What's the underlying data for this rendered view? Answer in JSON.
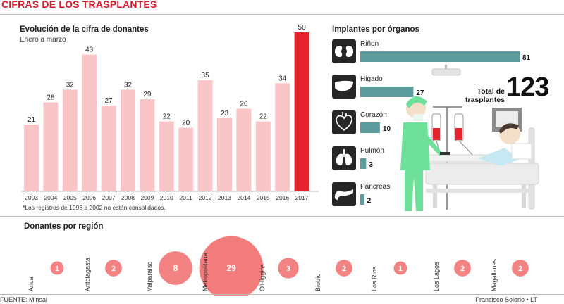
{
  "header": {
    "title": "CIFRAS DE LOS TRASPLANTES"
  },
  "colors": {
    "bar": "#f9c5c6",
    "highlight": "#e8222d",
    "organ_bar": "#5c9c9c",
    "bubble": "#f38383",
    "bubble_big": "#f27b7b",
    "icon_box": "#262626",
    "nurse": "#6fe09a"
  },
  "chart_data": [
    {
      "type": "bar",
      "title": "Evolución de la cifra de donantes",
      "subtitle": "Enero a marzo",
      "categories": [
        "2003",
        "2004",
        "2005",
        "2006",
        "2007",
        "2008",
        "2009",
        "2010",
        "2011",
        "2012",
        "2013",
        "2014",
        "2015",
        "2016",
        "2017"
      ],
      "values": [
        21,
        28,
        32,
        43,
        27,
        32,
        29,
        22,
        20,
        35,
        23,
        26,
        22,
        34,
        50
      ],
      "highlight_category": "2017",
      "ylim": [
        0,
        50
      ],
      "grid": false,
      "note": "*Los registros de 1998 a 2002 no están consolidados."
    },
    {
      "type": "bar",
      "orientation": "horizontal",
      "title": "Implantes por órganos",
      "categories": [
        "Riñon",
        "Higado",
        "Corazón",
        "Pulmón",
        "Páncreas"
      ],
      "icons": [
        "kidney-icon",
        "liver-icon",
        "heart-icon",
        "lungs-icon",
        "pancreas-icon"
      ],
      "values": [
        81,
        27,
        10,
        3,
        2
      ],
      "total_label": "Total de trasplantes",
      "total_value": "123"
    },
    {
      "type": "scatter",
      "encoding": "bubble size",
      "title": "Donantes por región",
      "categories": [
        "Arica",
        "Antofagasta",
        "Valparaíso",
        "Metropolitana",
        "O'Higgins",
        "Biobío",
        "Los Ríos",
        "Los Lagos",
        "Magallanes"
      ],
      "values": [
        1,
        2,
        8,
        29,
        3,
        2,
        1,
        2,
        2
      ]
    }
  ],
  "footer": {
    "source": "FUENTE: Minsal",
    "credit": "Francisco Solorio • LT"
  }
}
